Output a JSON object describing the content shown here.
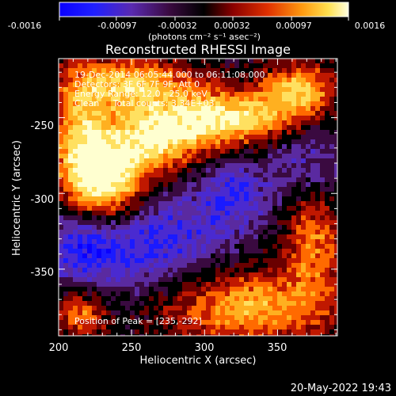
{
  "colorbar": {
    "tick_labels": [
      "-0.0016",
      "-0.00097",
      "-0.00032",
      "0.00032",
      "0.00097",
      "0.0016"
    ],
    "tick_values": [
      -0.0016,
      -0.00097,
      -0.00032,
      0.00032,
      0.00097,
      0.0016
    ],
    "range": [
      -0.0016,
      0.0016
    ],
    "unit_label": "(photons cm⁻² s⁻¹ asec⁻²)"
  },
  "chart_data": {
    "type": "heatmap",
    "title": "Reconstructed RHESSI Image",
    "xlabel": "Heliocentric X (arcsec)",
    "ylabel": "Heliocentric Y (arcsec)",
    "xlim": [
      200,
      391
    ],
    "ylim": [
      -394,
      -211
    ],
    "x_ticks": [
      200,
      250,
      300,
      350
    ],
    "y_ticks": [
      -250,
      -300,
      -350
    ],
    "colormap": [
      "#0a00ff",
      "#1a1aff",
      "#4a2ad0",
      "#5a2aa0",
      "#3a0a40",
      "#000000",
      "#6a0000",
      "#c01800",
      "#ff6a00",
      "#ffb020",
      "#ffe060",
      "#ffffd0"
    ],
    "annotations": [
      "19-Dec-2014 06:05:44.000 to 06:11:08.000",
      "Detectors: 3F 6F 7F 9F, Att 0",
      "Energy Range: 12.0 - 25.0 keV",
      "Clean     Total counts: 3.34E+03"
    ],
    "peak_label": "Position of Peak = [235,-292]",
    "peak_position": [
      235,
      -292
    ],
    "total_counts": 3340,
    "energy_range_keV": [
      12.0,
      25.0
    ]
  },
  "footer": {
    "timestamp": "20-May-2022 19:43"
  }
}
